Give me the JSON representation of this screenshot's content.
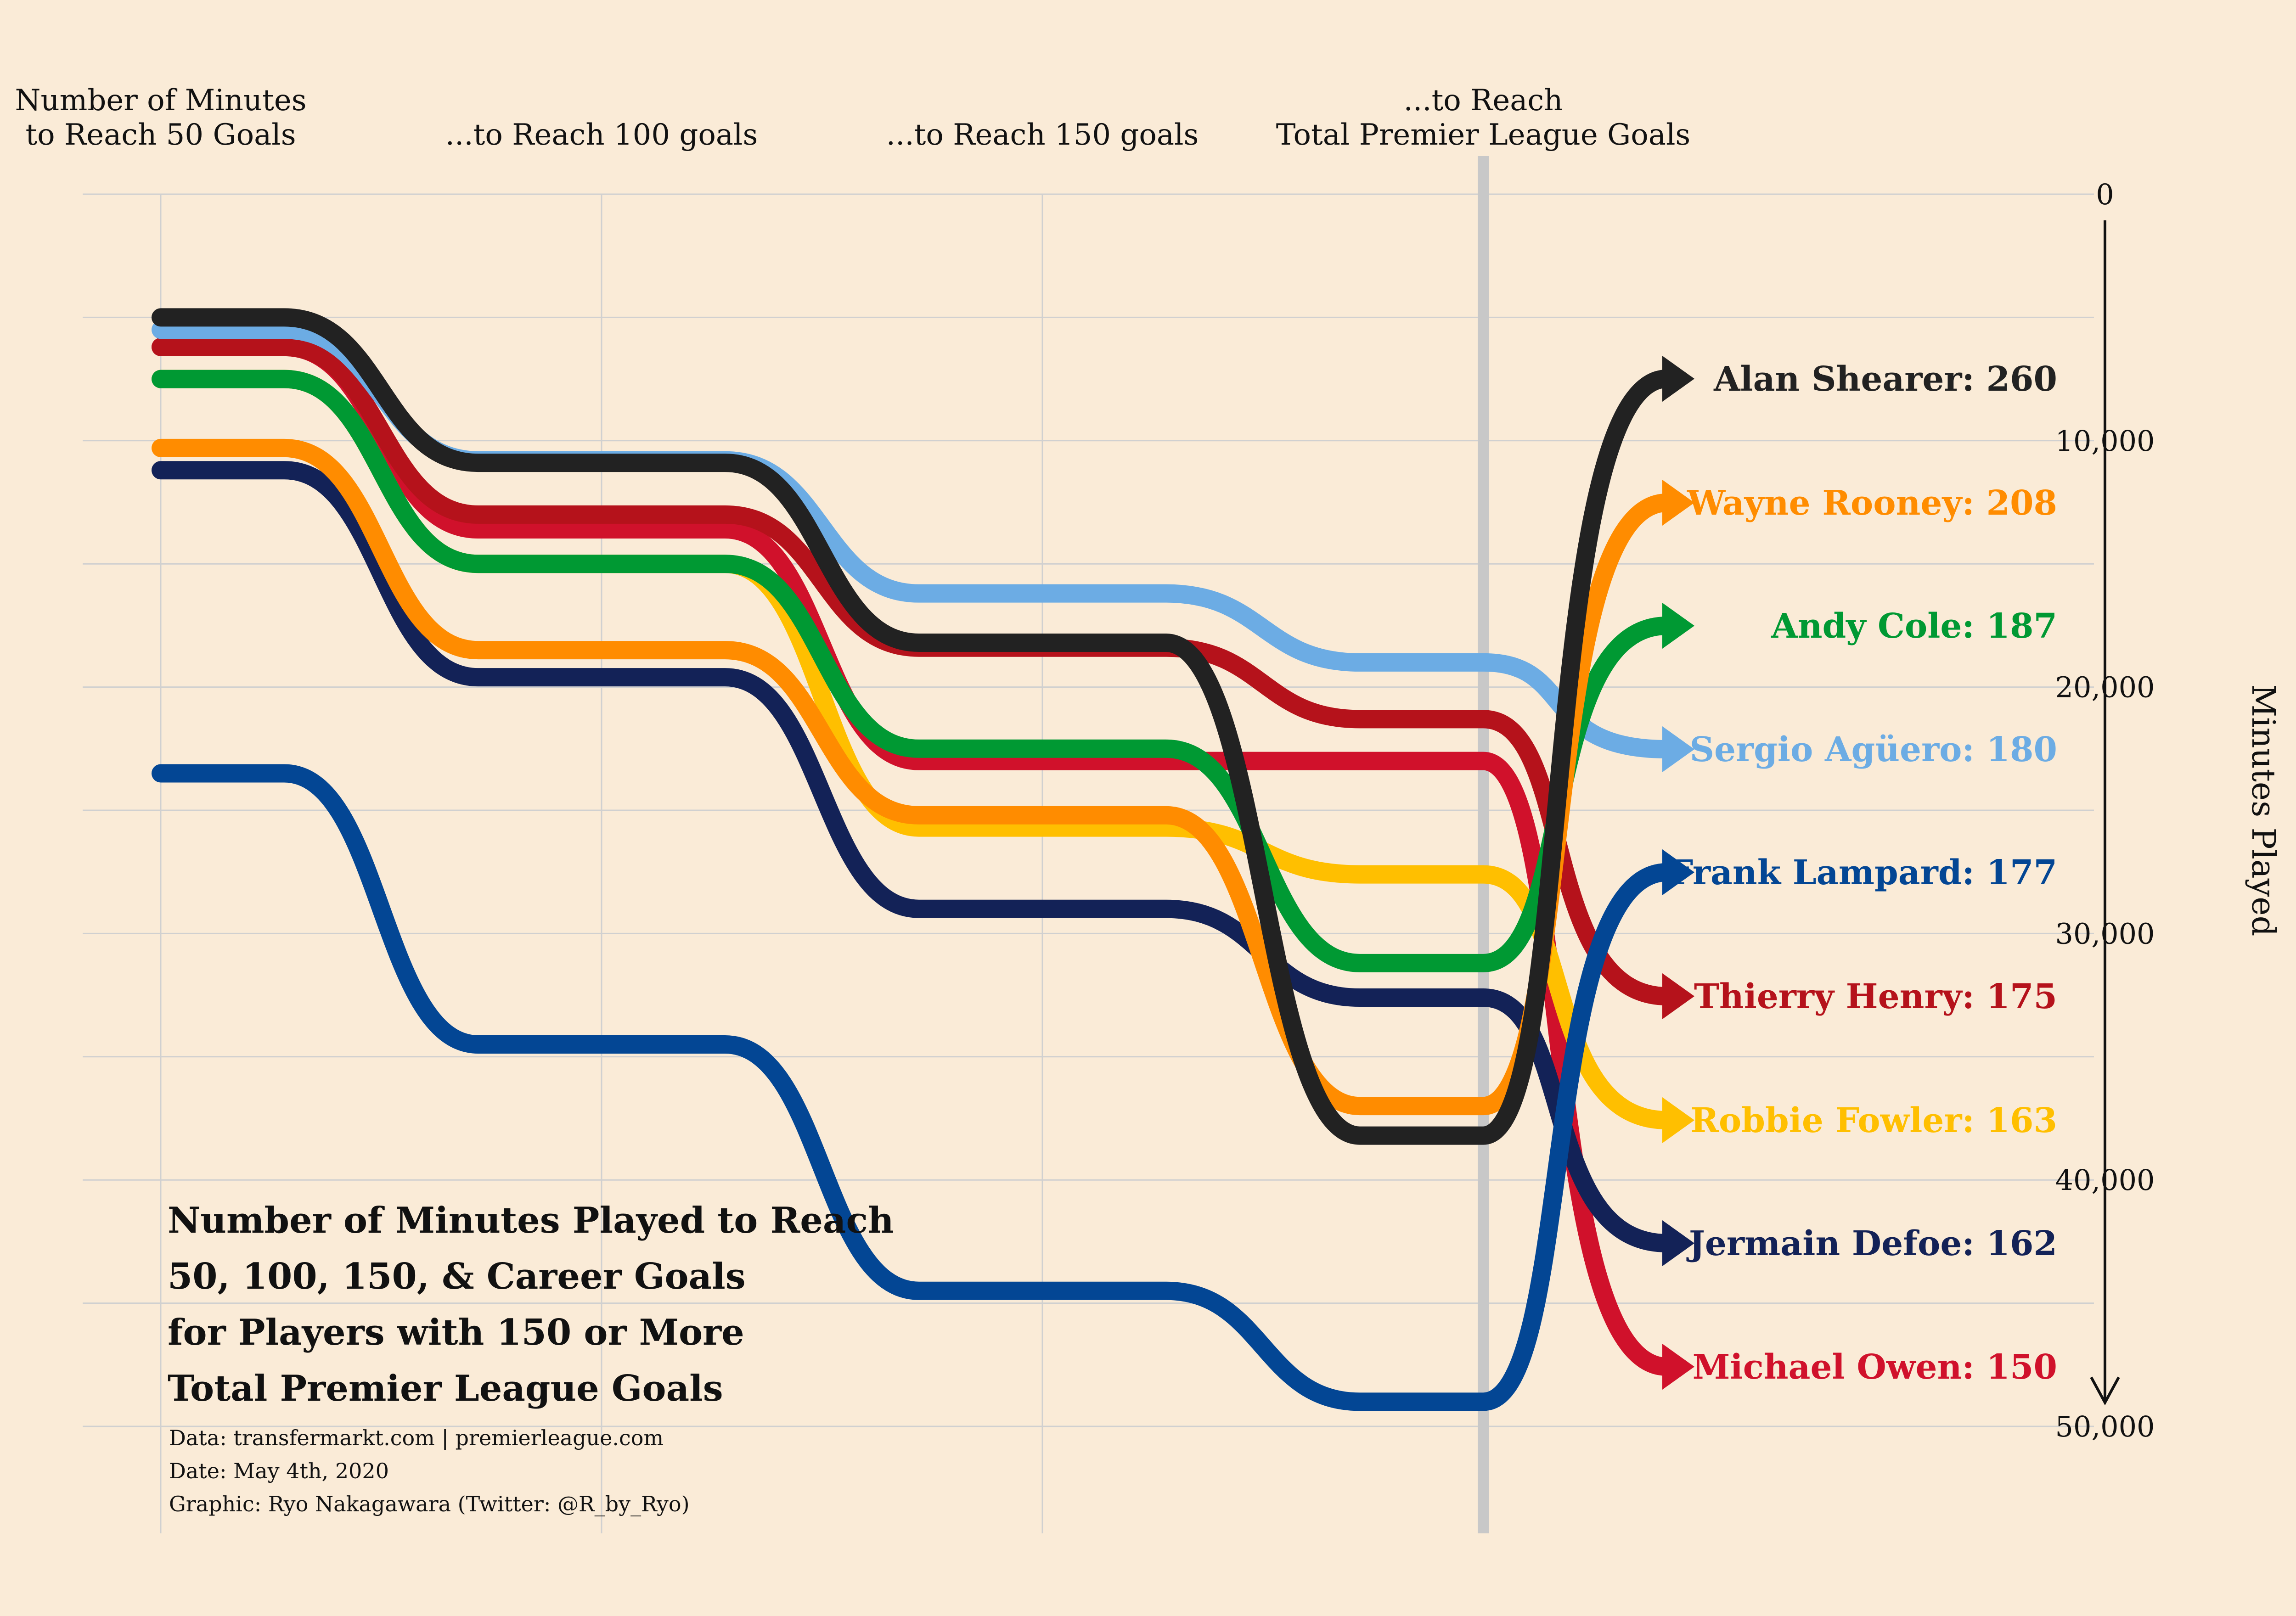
{
  "chart_data": {
    "type": "line",
    "title_lines": [
      "Number of Minutes Played to Reach",
      "50, 100, 150, & Career Goals",
      "for Players with 150 or More",
      "Total Premier League Goals"
    ],
    "caption_lines": [
      "Data: transfermarkt.com | premierleague.com",
      "Date: May 4th, 2020",
      "Graphic: Ryo Nakagawara (Twitter: @R_by_Ryo)"
    ],
    "categories": [
      [
        "Number of Minutes",
        "to Reach 50 Goals"
      ],
      [
        "...to Reach 100 goals"
      ],
      [
        "...to Reach 150 goals"
      ],
      [
        "...to Reach",
        "Total Premier League Goals"
      ]
    ],
    "ylabel": "Minutes Played",
    "ylim": [
      0,
      50000
    ],
    "y_reversed": true,
    "y_ticks": [
      0,
      10000,
      20000,
      30000,
      40000,
      50000
    ],
    "y_tick_labels": [
      "0",
      "10,000",
      "20,000",
      "30,000",
      "40,000",
      "50,000"
    ],
    "grid": true,
    "series": [
      {
        "name": "Alan Shearer",
        "goals": 260,
        "color": "#222222",
        "values": [
          5000,
          10900,
          18200,
          38200
        ]
      },
      {
        "name": "Wayne Rooney",
        "goals": 208,
        "color": "#ff8c00",
        "values": [
          10300,
          18500,
          25200,
          37000
        ]
      },
      {
        "name": "Andy Cole",
        "goals": 187,
        "color": "#009933",
        "values": [
          7500,
          15000,
          22500,
          31200
        ]
      },
      {
        "name": "Sergio Agüero",
        "goals": 180,
        "color": "#6cace4",
        "values": [
          5500,
          10800,
          16200,
          19000
        ]
      },
      {
        "name": "Frank Lampard",
        "goals": 177,
        "color": "#034694",
        "values": [
          23500,
          34500,
          44500,
          49000
        ]
      },
      {
        "name": "Thierry Henry",
        "goals": 175,
        "color": "#b5121b",
        "values": [
          6200,
          13000,
          18400,
          21300
        ]
      },
      {
        "name": "Robbie Fowler",
        "goals": 163,
        "color": "#ffbf00",
        "values": [
          7500,
          15000,
          25700,
          27600
        ]
      },
      {
        "name": "Jermain Defoe",
        "goals": 162,
        "color": "#132257",
        "values": [
          11200,
          19600,
          29000,
          32600
        ]
      },
      {
        "name": "Michael Owen",
        "goals": 150,
        "color": "#d0112b",
        "values": [
          6200,
          13600,
          23000,
          23000
        ]
      }
    ],
    "labels": [
      "Alan Shearer: 260",
      "Wayne Rooney: 208",
      "Andy Cole: 187",
      "Sergio Agüero: 180",
      "Frank Lampard: 177",
      "Thierry Henry: 175",
      "Robbie Fowler: 163",
      "Jermain Defoe: 162",
      "Michael Owen: 150"
    ]
  }
}
